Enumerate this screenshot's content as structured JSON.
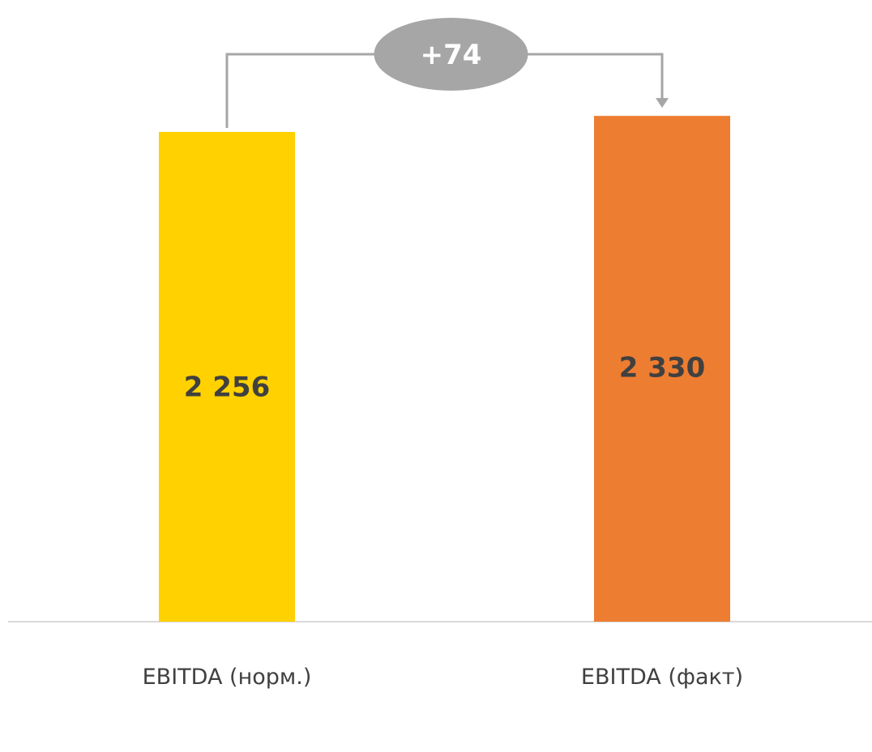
{
  "chart_data": {
    "type": "bar",
    "title": "",
    "categories": [
      "EBITDA (норм.)",
      "EBITDA (факт)"
    ],
    "values": [
      2256,
      2330
    ],
    "value_labels": [
      "2 256",
      "2 330"
    ],
    "colors": [
      "#FFD100",
      "#ED7D31"
    ],
    "delta_label": "+74",
    "delta_color": "#A6A6A6",
    "value_label_color": "#404040",
    "axis_label_color": "#404040",
    "ylim": [
      0,
      2400
    ],
    "grid": false,
    "legend": "none"
  }
}
